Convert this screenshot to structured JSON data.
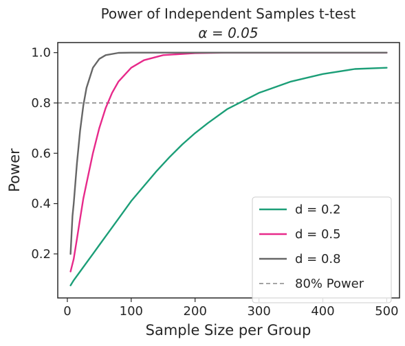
{
  "chart_data": {
    "type": "line",
    "title": "Power of Independent Samples t-test",
    "subtitle": "α = 0.05",
    "xlabel": "Sample Size per Group",
    "ylabel": "Power",
    "xlim": [
      -15,
      520
    ],
    "ylim": [
      0.025,
      1.04
    ],
    "xticks": [
      0,
      100,
      200,
      300,
      400,
      500
    ],
    "xtick_labels": [
      "0",
      "100",
      "200",
      "300",
      "400",
      "500"
    ],
    "yticks": [
      0.2,
      0.4,
      0.6,
      0.8,
      1.0
    ],
    "ytick_labels": [
      "0.2",
      "0.4",
      "0.6",
      "0.8",
      "1.0"
    ],
    "grid": false,
    "legend_position": "lower-right",
    "series": [
      {
        "name": "d = 0.2",
        "color": "#1b9e77",
        "x": [
          5,
          10,
          20,
          30,
          40,
          50,
          60,
          80,
          100,
          120,
          140,
          160,
          180,
          200,
          220,
          250,
          300,
          350,
          400,
          450,
          500
        ],
        "y": [
          0.075,
          0.095,
          0.13,
          0.165,
          0.2,
          0.235,
          0.27,
          0.34,
          0.41,
          0.47,
          0.53,
          0.585,
          0.635,
          0.68,
          0.72,
          0.775,
          0.84,
          0.885,
          0.915,
          0.935,
          0.94
        ]
      },
      {
        "name": "d = 0.5",
        "color": "#e7298a",
        "x": [
          5,
          10,
          15,
          20,
          25,
          30,
          40,
          50,
          60,
          70,
          80,
          100,
          120,
          150,
          200,
          250,
          300,
          400,
          500
        ],
        "y": [
          0.13,
          0.18,
          0.26,
          0.34,
          0.42,
          0.48,
          0.6,
          0.7,
          0.78,
          0.84,
          0.885,
          0.94,
          0.97,
          0.99,
          0.998,
          1.0,
          1.0,
          1.0,
          1.0
        ]
      },
      {
        "name": "d = 0.8",
        "color": "#666666",
        "x": [
          5,
          8,
          10,
          15,
          20,
          25,
          30,
          40,
          50,
          60,
          80,
          100,
          150,
          200,
          300,
          400,
          500
        ],
        "y": [
          0.2,
          0.35,
          0.4,
          0.56,
          0.69,
          0.79,
          0.86,
          0.94,
          0.975,
          0.99,
          0.999,
          1.0,
          1.0,
          1.0,
          1.0,
          1.0,
          1.0
        ]
      }
    ],
    "reference_lines": [
      {
        "name": "80% Power",
        "y": 0.8,
        "color": "#888888",
        "style": "dashed"
      }
    ]
  }
}
